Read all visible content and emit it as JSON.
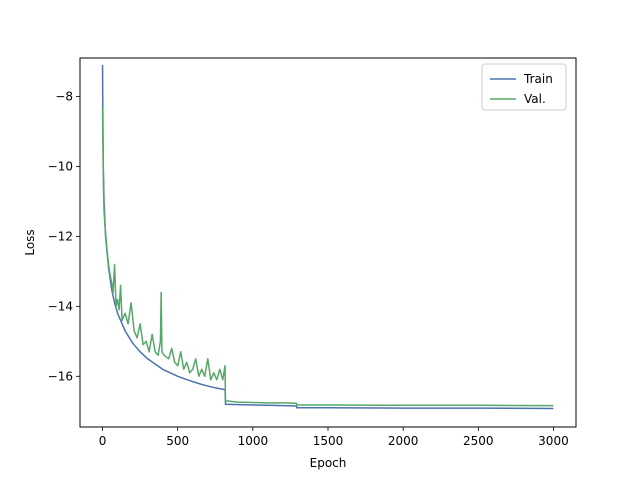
{
  "chart_data": {
    "type": "line",
    "title": "",
    "xlabel": "Epoch",
    "ylabel": "Loss",
    "xlim": [
      -150,
      3150
    ],
    "ylim": [
      -17.45,
      -6.9
    ],
    "xticks": [
      0,
      500,
      1000,
      1500,
      2000,
      2500,
      3000
    ],
    "yticks": [
      -16,
      -14,
      -12,
      -10,
      -8
    ],
    "xtick_labels": [
      "0",
      "500",
      "1000",
      "1500",
      "2000",
      "2500",
      "3000"
    ],
    "ytick_labels": [
      "−16",
      "−14",
      "−12",
      "−10",
      "−8"
    ],
    "grid": false,
    "legend": {
      "position": "top-right"
    },
    "series": [
      {
        "name": "Train",
        "color": "#4c72b0",
        "points": [
          [
            0,
            -7.1
          ],
          [
            2,
            -8.5
          ],
          [
            5,
            -10.0
          ],
          [
            10,
            -11.0
          ],
          [
            20,
            -12.0
          ],
          [
            40,
            -12.9
          ],
          [
            60,
            -13.5
          ],
          [
            80,
            -13.9
          ],
          [
            100,
            -14.2
          ],
          [
            150,
            -14.7
          ],
          [
            200,
            -15.05
          ],
          [
            250,
            -15.3
          ],
          [
            300,
            -15.5
          ],
          [
            350,
            -15.65
          ],
          [
            400,
            -15.8
          ],
          [
            450,
            -15.9
          ],
          [
            500,
            -16.0
          ],
          [
            550,
            -16.08
          ],
          [
            600,
            -16.15
          ],
          [
            650,
            -16.22
          ],
          [
            700,
            -16.28
          ],
          [
            750,
            -16.33
          ],
          [
            815,
            -16.38
          ],
          [
            818,
            -16.8
          ],
          [
            900,
            -16.81
          ],
          [
            1000,
            -16.82
          ],
          [
            1100,
            -16.83
          ],
          [
            1200,
            -16.84
          ],
          [
            1290,
            -16.85
          ],
          [
            1292,
            -16.9
          ],
          [
            1500,
            -16.9
          ],
          [
            2000,
            -16.91
          ],
          [
            2500,
            -16.91
          ],
          [
            3000,
            -16.92
          ]
        ]
      },
      {
        "name": "Val.",
        "color": "#55a868",
        "points": [
          [
            0,
            -8.3
          ],
          [
            3,
            -9.5
          ],
          [
            6,
            -10.6
          ],
          [
            10,
            -11.3
          ],
          [
            15,
            -11.6
          ],
          [
            20,
            -11.9
          ],
          [
            30,
            -12.4
          ],
          [
            40,
            -12.8
          ],
          [
            50,
            -13.1
          ],
          [
            60,
            -13.3
          ],
          [
            70,
            -13.6
          ],
          [
            80,
            -12.8
          ],
          [
            90,
            -14.0
          ],
          [
            100,
            -13.8
          ],
          [
            110,
            -14.1
          ],
          [
            120,
            -13.4
          ],
          [
            130,
            -14.4
          ],
          [
            150,
            -14.2
          ],
          [
            170,
            -14.5
          ],
          [
            190,
            -13.9
          ],
          [
            210,
            -14.7
          ],
          [
            230,
            -14.9
          ],
          [
            250,
            -14.5
          ],
          [
            270,
            -15.1
          ],
          [
            290,
            -15.0
          ],
          [
            310,
            -15.3
          ],
          [
            330,
            -14.8
          ],
          [
            350,
            -15.3
          ],
          [
            370,
            -15.4
          ],
          [
            385,
            -15.0
          ],
          [
            390,
            -13.6
          ],
          [
            395,
            -15.3
          ],
          [
            410,
            -15.4
          ],
          [
            440,
            -15.5
          ],
          [
            460,
            -15.2
          ],
          [
            480,
            -15.6
          ],
          [
            500,
            -15.7
          ],
          [
            520,
            -15.3
          ],
          [
            540,
            -15.8
          ],
          [
            560,
            -15.6
          ],
          [
            580,
            -15.9
          ],
          [
            600,
            -15.8
          ],
          [
            620,
            -15.5
          ],
          [
            640,
            -16.0
          ],
          [
            660,
            -15.8
          ],
          [
            680,
            -16.0
          ],
          [
            700,
            -15.5
          ],
          [
            720,
            -16.1
          ],
          [
            740,
            -15.9
          ],
          [
            760,
            -16.1
          ],
          [
            780,
            -15.8
          ],
          [
            800,
            -16.1
          ],
          [
            815,
            -15.7
          ],
          [
            818,
            -16.7
          ],
          [
            900,
            -16.74
          ],
          [
            1000,
            -16.75
          ],
          [
            1100,
            -16.76
          ],
          [
            1200,
            -16.76
          ],
          [
            1290,
            -16.77
          ],
          [
            1292,
            -16.82
          ],
          [
            1500,
            -16.82
          ],
          [
            2000,
            -16.83
          ],
          [
            2500,
            -16.83
          ],
          [
            3000,
            -16.84
          ]
        ]
      }
    ]
  }
}
